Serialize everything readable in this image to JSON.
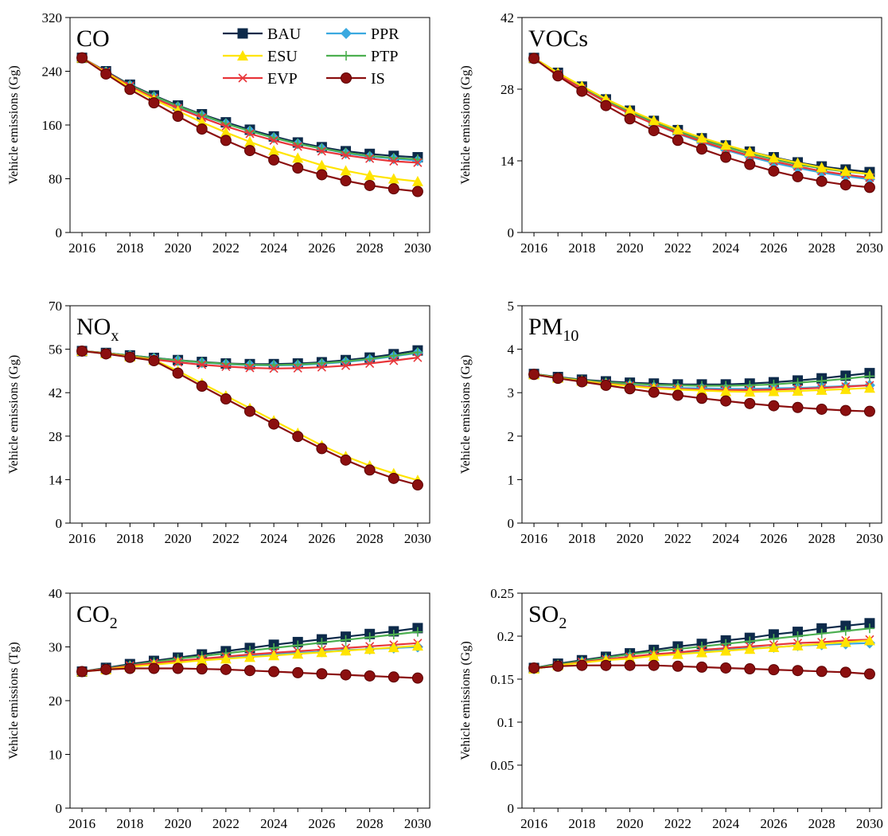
{
  "legend": {
    "entries": [
      {
        "key": "BAU",
        "label": "BAU"
      },
      {
        "key": "PPR",
        "label": "PPR"
      },
      {
        "key": "ESU",
        "label": "ESU"
      },
      {
        "key": "PTP",
        "label": "PTP"
      },
      {
        "key": "EVP",
        "label": "EVP"
      },
      {
        "key": "IS",
        "label": "IS"
      }
    ]
  },
  "series_style": {
    "BAU": {
      "color": "#0d2a4a",
      "marker": "square"
    },
    "PPR": {
      "color": "#3ba9e0",
      "marker": "diamond"
    },
    "ESU": {
      "color": "#ffe400",
      "marker": "triangle"
    },
    "PTP": {
      "color": "#4caf50",
      "marker": "plus"
    },
    "EVP": {
      "color": "#e8363a",
      "marker": "x"
    },
    "IS": {
      "color": "#8b0f0f",
      "marker": "circle"
    }
  },
  "chart_data": [
    {
      "type": "line",
      "title": "CO",
      "ylabel": "Vehicle emissions (Gg)",
      "ylim": [
        0,
        320
      ],
      "yticks": [
        "0",
        "80",
        "160",
        "240",
        "320"
      ],
      "xticks": [
        "2016",
        "2018",
        "2020",
        "2022",
        "2024",
        "2026",
        "2028",
        "2030"
      ],
      "x": [
        2016,
        2017,
        2018,
        2019,
        2020,
        2021,
        2022,
        2023,
        2024,
        2025,
        2026,
        2027,
        2028,
        2029,
        2030
      ],
      "series": [
        {
          "name": "BAU",
          "values": [
            260,
            240,
            220,
            204,
            189,
            176,
            164,
            153,
            143,
            134,
            127,
            121,
            117,
            114,
            112
          ]
        },
        {
          "name": "PPR",
          "values": [
            260,
            239,
            219,
            202,
            187,
            174,
            162,
            151,
            141,
            132,
            125,
            118,
            113,
            110,
            107
          ]
        },
        {
          "name": "ESU",
          "values": [
            260,
            238,
            216,
            198,
            181,
            164,
            149,
            135,
            122,
            111,
            100,
            92,
            85,
            80,
            76
          ]
        },
        {
          "name": "PTP",
          "values": [
            260,
            239,
            219,
            203,
            188,
            175,
            162,
            151,
            141,
            132,
            125,
            119,
            114,
            111,
            109
          ]
        },
        {
          "name": "EVP",
          "values": [
            260,
            239,
            218,
            200,
            185,
            171,
            158,
            147,
            137,
            128,
            121,
            115,
            110,
            106,
            104
          ]
        },
        {
          "name": "IS",
          "values": [
            260,
            236,
            213,
            193,
            173,
            154,
            137,
            122,
            108,
            96,
            86,
            77,
            70,
            65,
            61
          ]
        }
      ]
    },
    {
      "type": "line",
      "title": "VOCs",
      "ylabel": "Vehicle emissions (Gg)",
      "ylim": [
        0,
        42
      ],
      "yticks": [
        "0",
        "14",
        "28",
        "42"
      ],
      "xticks": [
        "2016",
        "2018",
        "2020",
        "2022",
        "2024",
        "2026",
        "2028",
        "2030"
      ],
      "x": [
        2016,
        2017,
        2018,
        2019,
        2020,
        2021,
        2022,
        2023,
        2024,
        2025,
        2026,
        2027,
        2028,
        2029,
        2030
      ],
      "series": [
        {
          "name": "BAU",
          "values": [
            34.1,
            31.2,
            28.5,
            26.0,
            23.8,
            21.8,
            20.0,
            18.4,
            17.0,
            15.8,
            14.7,
            13.7,
            12.9,
            12.3,
            11.8
          ]
        },
        {
          "name": "PPR",
          "values": [
            34.0,
            31.0,
            28.2,
            25.6,
            23.3,
            21.2,
            19.3,
            17.6,
            16.1,
            14.8,
            13.6,
            12.6,
            11.7,
            11.0,
            10.4
          ]
        },
        {
          "name": "ESU",
          "values": [
            34.1,
            31.2,
            28.6,
            26.1,
            23.9,
            21.9,
            20.1,
            18.5,
            17.1,
            15.8,
            14.6,
            13.6,
            12.7,
            12.0,
            11.4
          ]
        },
        {
          "name": "PTP",
          "values": [
            34.0,
            31.0,
            28.3,
            25.8,
            23.5,
            21.5,
            19.7,
            18.1,
            16.7,
            15.4,
            14.3,
            13.3,
            12.5,
            11.9,
            11.4
          ]
        },
        {
          "name": "EVP",
          "values": [
            34.0,
            30.9,
            28.1,
            25.5,
            23.2,
            21.2,
            19.4,
            17.8,
            16.3,
            15.0,
            13.9,
            12.9,
            12.0,
            11.3,
            10.7
          ]
        },
        {
          "name": "IS",
          "values": [
            34.0,
            30.6,
            27.6,
            24.8,
            22.2,
            19.9,
            18.0,
            16.3,
            14.7,
            13.3,
            12.0,
            10.9,
            10.0,
            9.3,
            8.8
          ]
        }
      ]
    },
    {
      "type": "line",
      "title": "NOx",
      "title_main": "NO",
      "title_sub": "x",
      "ylabel": "Vehicle emissions (Gg)",
      "ylim": [
        0,
        70
      ],
      "yticks": [
        "0",
        "14",
        "28",
        "42",
        "56",
        "70"
      ],
      "xticks": [
        "2016",
        "2018",
        "2020",
        "2022",
        "2024",
        "2026",
        "2028",
        "2030"
      ],
      "x": [
        2016,
        2017,
        2018,
        2019,
        2020,
        2021,
        2022,
        2023,
        2024,
        2025,
        2026,
        2027,
        2028,
        2029,
        2030
      ],
      "series": [
        {
          "name": "BAU",
          "values": [
            55.4,
            54.8,
            54.0,
            53.2,
            52.5,
            51.9,
            51.4,
            51.2,
            51.2,
            51.4,
            51.8,
            52.5,
            53.3,
            54.4,
            55.6
          ]
        },
        {
          "name": "PPR",
          "values": [
            55.4,
            54.8,
            54.0,
            53.1,
            52.4,
            51.7,
            51.2,
            50.9,
            50.8,
            50.9,
            51.3,
            51.9,
            52.7,
            53.7,
            54.8
          ]
        },
        {
          "name": "ESU",
          "values": [
            55.4,
            54.6,
            53.6,
            52.6,
            49.0,
            45.0,
            41.0,
            37.0,
            33.0,
            29.0,
            25.0,
            21.5,
            18.5,
            16.0,
            13.8
          ]
        },
        {
          "name": "PTP",
          "values": [
            55.4,
            54.8,
            54.0,
            53.1,
            52.4,
            51.8,
            51.3,
            51.0,
            50.9,
            51.1,
            51.5,
            52.1,
            52.9,
            53.9,
            55.0
          ]
        },
        {
          "name": "EVP",
          "values": [
            55.4,
            54.7,
            53.7,
            52.7,
            51.8,
            51.0,
            50.4,
            50.0,
            49.8,
            49.9,
            50.2,
            50.7,
            51.4,
            52.3,
            53.3
          ]
        },
        {
          "name": "IS",
          "values": [
            55.4,
            54.5,
            53.4,
            52.3,
            48.3,
            44.1,
            40.0,
            36.0,
            31.9,
            27.9,
            24.0,
            20.3,
            17.1,
            14.4,
            12.3
          ]
        }
      ]
    },
    {
      "type": "line",
      "title": "PM10",
      "title_main": "PM",
      "title_sub": "10",
      "ylabel": "Vehicle emissions (Gg)",
      "ylim": [
        0,
        5
      ],
      "yticks": [
        "0",
        "1",
        "2",
        "3",
        "4",
        "5"
      ],
      "xticks": [
        "2016",
        "2018",
        "2020",
        "2022",
        "2024",
        "2026",
        "2028",
        "2030"
      ],
      "x": [
        2016,
        2017,
        2018,
        2019,
        2020,
        2021,
        2022,
        2023,
        2024,
        2025,
        2026,
        2027,
        2028,
        2029,
        2030
      ],
      "series": [
        {
          "name": "BAU",
          "values": [
            3.43,
            3.36,
            3.3,
            3.26,
            3.23,
            3.21,
            3.19,
            3.19,
            3.19,
            3.21,
            3.24,
            3.28,
            3.33,
            3.39,
            3.45
          ]
        },
        {
          "name": "PPR",
          "values": [
            3.42,
            3.34,
            3.27,
            3.21,
            3.17,
            3.13,
            3.11,
            3.1,
            3.09,
            3.09,
            3.1,
            3.11,
            3.13,
            3.15,
            3.17
          ]
        },
        {
          "name": "ESU",
          "values": [
            3.42,
            3.34,
            3.27,
            3.2,
            3.15,
            3.1,
            3.07,
            3.05,
            3.03,
            3.02,
            3.03,
            3.04,
            3.06,
            3.08,
            3.11
          ]
        },
        {
          "name": "PTP",
          "values": [
            3.43,
            3.35,
            3.29,
            3.24,
            3.21,
            3.18,
            3.17,
            3.16,
            3.16,
            3.17,
            3.19,
            3.23,
            3.27,
            3.32,
            3.38
          ]
        },
        {
          "name": "EVP",
          "values": [
            3.42,
            3.34,
            3.27,
            3.21,
            3.16,
            3.12,
            3.09,
            3.07,
            3.06,
            3.06,
            3.07,
            3.09,
            3.11,
            3.14,
            3.17
          ]
        },
        {
          "name": "IS",
          "values": [
            3.42,
            3.33,
            3.25,
            3.17,
            3.09,
            3.01,
            2.94,
            2.87,
            2.81,
            2.75,
            2.7,
            2.66,
            2.62,
            2.59,
            2.57
          ]
        }
      ]
    },
    {
      "type": "line",
      "title": "CO2",
      "title_main": "CO",
      "title_sub": "2",
      "ylabel": "Vehicle emissions (Tg)",
      "ylim": [
        0,
        40
      ],
      "yticks": [
        "0",
        "10",
        "20",
        "30",
        "40"
      ],
      "xticks": [
        "2016",
        "2018",
        "2020",
        "2022",
        "2024",
        "2026",
        "2028",
        "2030"
      ],
      "x": [
        2016,
        2017,
        2018,
        2019,
        2020,
        2021,
        2022,
        2023,
        2024,
        2025,
        2026,
        2027,
        2028,
        2029,
        2030
      ],
      "series": [
        {
          "name": "BAU",
          "values": [
            25.4,
            26.1,
            26.8,
            27.4,
            28.0,
            28.6,
            29.2,
            29.8,
            30.4,
            30.9,
            31.4,
            31.9,
            32.4,
            32.9,
            33.5
          ]
        },
        {
          "name": "PPR",
          "values": [
            25.4,
            25.9,
            26.4,
            26.8,
            27.2,
            27.6,
            28.0,
            28.3,
            28.6,
            28.9,
            29.1,
            29.4,
            29.6,
            29.8,
            30.0
          ]
        },
        {
          "name": "ESU",
          "values": [
            25.4,
            25.8,
            26.3,
            26.7,
            27.1,
            27.5,
            27.8,
            28.1,
            28.4,
            28.7,
            29.0,
            29.3,
            29.6,
            29.9,
            30.2
          ]
        },
        {
          "name": "PTP",
          "values": [
            25.4,
            26.0,
            26.6,
            27.2,
            27.8,
            28.3,
            28.8,
            29.3,
            29.8,
            30.3,
            30.8,
            31.3,
            31.8,
            32.3,
            32.8
          ]
        },
        {
          "name": "EVP",
          "values": [
            25.4,
            25.9,
            26.5,
            27.0,
            27.4,
            27.8,
            28.2,
            28.6,
            28.9,
            29.2,
            29.5,
            29.8,
            30.1,
            30.4,
            30.7
          ]
        },
        {
          "name": "IS",
          "values": [
            25.4,
            25.8,
            26.0,
            26.0,
            26.0,
            25.9,
            25.8,
            25.6,
            25.4,
            25.2,
            25.0,
            24.8,
            24.6,
            24.4,
            24.2
          ]
        }
      ]
    },
    {
      "type": "line",
      "title": "SO2",
      "title_main": "SO",
      "title_sub": "2",
      "ylabel": "Vehicle emissions (Gg)",
      "ylim": [
        0,
        0.25
      ],
      "yticks": [
        "0",
        "0.05",
        "0.1",
        "0.15",
        "0.2",
        "0.25"
      ],
      "xticks": [
        "2016",
        "2018",
        "2020",
        "2022",
        "2024",
        "2026",
        "2028",
        "2030"
      ],
      "x": [
        2016,
        2017,
        2018,
        2019,
        2020,
        2021,
        2022,
        2023,
        2024,
        2025,
        2026,
        2027,
        2028,
        2029,
        2030
      ],
      "series": [
        {
          "name": "BAU",
          "values": [
            0.163,
            0.168,
            0.172,
            0.176,
            0.18,
            0.184,
            0.188,
            0.191,
            0.195,
            0.198,
            0.202,
            0.205,
            0.209,
            0.212,
            0.215
          ]
        },
        {
          "name": "PPR",
          "values": [
            0.162,
            0.166,
            0.17,
            0.173,
            0.176,
            0.178,
            0.18,
            0.182,
            0.184,
            0.186,
            0.187,
            0.189,
            0.19,
            0.191,
            0.192
          ]
        },
        {
          "name": "ESU",
          "values": [
            0.162,
            0.166,
            0.169,
            0.172,
            0.174,
            0.177,
            0.179,
            0.181,
            0.183,
            0.185,
            0.187,
            0.189,
            0.191,
            0.193,
            0.195
          ]
        },
        {
          "name": "PTP",
          "values": [
            0.163,
            0.167,
            0.171,
            0.175,
            0.179,
            0.182,
            0.185,
            0.188,
            0.191,
            0.194,
            0.197,
            0.2,
            0.203,
            0.206,
            0.209
          ]
        },
        {
          "name": "EVP",
          "values": [
            0.162,
            0.166,
            0.17,
            0.173,
            0.176,
            0.179,
            0.181,
            0.184,
            0.186,
            0.188,
            0.19,
            0.192,
            0.193,
            0.195,
            0.196
          ]
        },
        {
          "name": "IS",
          "values": [
            0.163,
            0.165,
            0.166,
            0.166,
            0.166,
            0.166,
            0.165,
            0.164,
            0.163,
            0.162,
            0.161,
            0.16,
            0.159,
            0.158,
            0.156
          ]
        }
      ]
    }
  ]
}
